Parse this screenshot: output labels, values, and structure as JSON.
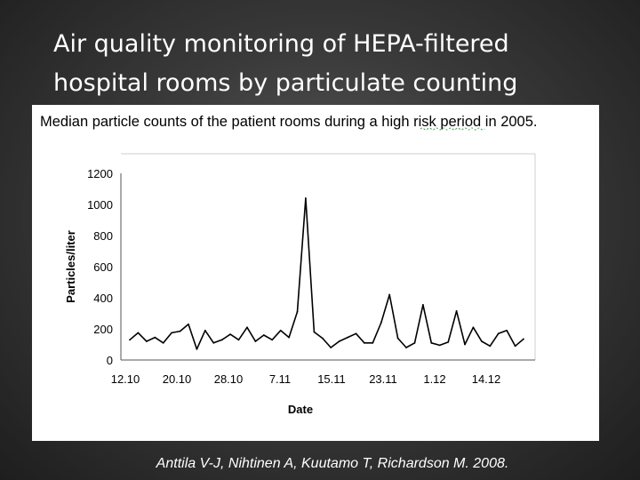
{
  "slide": {
    "title_line1": "Air quality monitoring of HEPA-filtered",
    "title_line2": "hospital rooms by particulate counting",
    "citation": "Anttila V-J, Nihtinen A, Kuutamo T, Richardson M. 2008."
  },
  "chart_data": {
    "type": "line",
    "title": "Median particle counts of the patient rooms during a high risk period in 2005.",
    "xlabel": "Date",
    "ylabel": "Particles/liter",
    "ylim": [
      0,
      1200
    ],
    "yticks": [
      0,
      200,
      400,
      600,
      800,
      1000,
      1200
    ],
    "xticks": [
      "12.10",
      "20.10",
      "28.10",
      "7.11",
      "15.11",
      "23.11",
      "1.12",
      "14.12"
    ],
    "grid": false,
    "line_color": "#000000",
    "series": [
      {
        "values": [
          130,
          175,
          120,
          145,
          110,
          175,
          185,
          230,
          70,
          190,
          110,
          130,
          165,
          130,
          210,
          120,
          160,
          130,
          190,
          145,
          310,
          1040,
          180,
          140,
          80,
          120,
          145,
          170,
          110,
          110,
          240,
          420,
          140,
          80,
          110,
          355,
          110,
          95,
          115,
          315,
          100,
          210,
          120,
          90,
          170,
          190,
          90,
          135
        ]
      }
    ]
  }
}
